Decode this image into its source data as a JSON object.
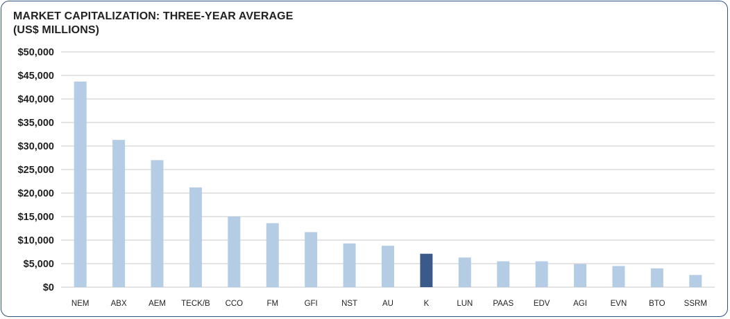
{
  "chart_data": {
    "type": "bar",
    "title": "MARKET CAPITALIZATION: THREE-YEAR AVERAGE",
    "subtitle": "(US$ MILLIONS)",
    "categories": [
      "NEM",
      "ABX",
      "AEM",
      "TECK/B",
      "CCO",
      "FM",
      "GFI",
      "NST",
      "AU",
      "K",
      "LUN",
      "PAAS",
      "EDV",
      "AGI",
      "EVN",
      "BTO",
      "SSRM"
    ],
    "values": [
      43700,
      31300,
      27000,
      21200,
      15000,
      13600,
      11700,
      9300,
      8800,
      7100,
      6300,
      5500,
      5500,
      4900,
      4500,
      4000,
      2600
    ],
    "highlight": "K",
    "ylim": [
      0,
      50000
    ],
    "yticks": [
      0,
      5000,
      10000,
      15000,
      20000,
      25000,
      30000,
      35000,
      40000,
      45000,
      50000
    ],
    "ytick_labels": [
      "$0",
      "$5,000",
      "$10,000",
      "$15,000",
      "$20,000",
      "$25,000",
      "$30,000",
      "$35,000",
      "$40,000",
      "$45,000",
      "$50,000"
    ],
    "grid": true,
    "colors": {
      "bar": "#b4cde4",
      "highlight": "#3a5a8c",
      "grid": "#c9c9c9",
      "frame": "#2f4f7f"
    }
  }
}
